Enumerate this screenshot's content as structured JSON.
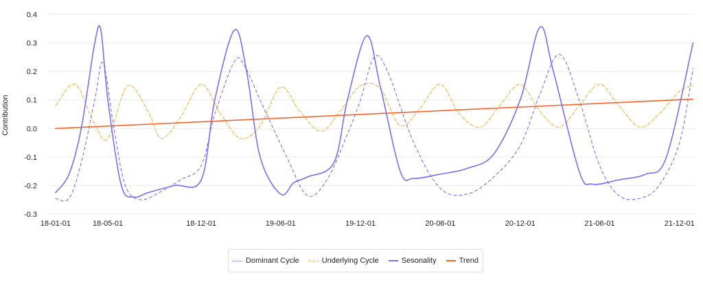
{
  "chart_data": {
    "type": "line",
    "title": "",
    "xlabel": "",
    "ylabel": "Contribution",
    "ylim": [
      -0.3,
      0.4
    ],
    "y_ticks": [
      "-0.3",
      "-0.2",
      "-0.1",
      "0.0",
      "0.1",
      "0.2",
      "0.3",
      "0.4"
    ],
    "x_range": [
      "2017-12-15",
      "2022-01-05"
    ],
    "x_ticks": [
      {
        "date": "2018-01-01",
        "label": "18-01-01"
      },
      {
        "date": "2018-05-01",
        "label": "18-05-01"
      },
      {
        "date": "2018-12-01",
        "label": "18-12-01"
      },
      {
        "date": "2019-06-01",
        "label": "19-06-01"
      },
      {
        "date": "2019-12-01",
        "label": "19-12-01"
      },
      {
        "date": "2020-06-01",
        "label": "20-06-01"
      },
      {
        "date": "2020-12-01",
        "label": "20-12-01"
      },
      {
        "date": "2021-06-01",
        "label": "21-06-01"
      },
      {
        "date": "2021-12-01",
        "label": "21-12-01"
      }
    ],
    "grid": true,
    "legend_position": "bottom",
    "series": [
      {
        "name": "Dominant Cycle",
        "style": "dotted",
        "color": "#7b6cf6",
        "points": [
          [
            "2018-01-01",
            -0.245
          ],
          [
            "2018-02-01",
            -0.245
          ],
          [
            "2018-03-01",
            -0.12
          ],
          [
            "2018-04-01",
            0.1
          ],
          [
            "2018-04-20",
            0.23
          ],
          [
            "2018-05-15",
            0.0
          ],
          [
            "2018-06-10",
            -0.2
          ],
          [
            "2018-07-15",
            -0.25
          ],
          [
            "2018-09-01",
            -0.22
          ],
          [
            "2018-10-15",
            -0.18
          ],
          [
            "2018-12-01",
            -0.13
          ],
          [
            "2019-01-01",
            0.05
          ],
          [
            "2019-02-15",
            0.235
          ],
          [
            "2019-03-10",
            0.22
          ],
          [
            "2019-04-15",
            0.1
          ],
          [
            "2019-06-15",
            -0.1
          ],
          [
            "2019-08-01",
            -0.235
          ],
          [
            "2019-09-15",
            -0.18
          ],
          [
            "2019-11-01",
            -0.02
          ],
          [
            "2019-12-01",
            0.1
          ],
          [
            "2020-01-01",
            0.25
          ],
          [
            "2020-02-01",
            0.2
          ],
          [
            "2020-04-01",
            -0.05
          ],
          [
            "2020-06-01",
            -0.21
          ],
          [
            "2020-08-01",
            -0.23
          ],
          [
            "2020-10-01",
            -0.17
          ],
          [
            "2020-12-01",
            -0.06
          ],
          [
            "2021-01-15",
            0.12
          ],
          [
            "2021-03-01",
            0.26
          ],
          [
            "2021-04-15",
            0.1
          ],
          [
            "2021-06-01",
            -0.13
          ],
          [
            "2021-07-15",
            -0.235
          ],
          [
            "2021-09-01",
            -0.245
          ],
          [
            "2021-10-15",
            -0.2
          ],
          [
            "2021-12-01",
            -0.05
          ],
          [
            "2022-01-01",
            0.21
          ]
        ]
      },
      {
        "name": "Underlying Cycle",
        "style": "dashed",
        "color": "#f5b342",
        "points": [
          [
            "2018-01-01",
            0.08
          ],
          [
            "2018-02-15",
            0.155
          ],
          [
            "2018-03-30",
            0.02
          ],
          [
            "2018-05-01",
            -0.035
          ],
          [
            "2018-06-15",
            0.15
          ],
          [
            "2018-08-01",
            0.06
          ],
          [
            "2018-09-01",
            -0.035
          ],
          [
            "2018-10-15",
            0.04
          ],
          [
            "2018-12-01",
            0.155
          ],
          [
            "2019-01-15",
            0.05
          ],
          [
            "2019-03-01",
            -0.035
          ],
          [
            "2019-04-15",
            0.01
          ],
          [
            "2019-06-01",
            0.145
          ],
          [
            "2019-07-15",
            0.06
          ],
          [
            "2019-09-01",
            -0.01
          ],
          [
            "2019-10-15",
            0.06
          ],
          [
            "2019-12-01",
            0.15
          ],
          [
            "2020-01-15",
            0.14
          ],
          [
            "2020-03-01",
            0.01
          ],
          [
            "2020-04-15",
            0.07
          ],
          [
            "2020-06-01",
            0.155
          ],
          [
            "2020-07-15",
            0.05
          ],
          [
            "2020-09-01",
            0.005
          ],
          [
            "2020-10-15",
            0.08
          ],
          [
            "2020-12-01",
            0.155
          ],
          [
            "2021-01-15",
            0.06
          ],
          [
            "2021-03-01",
            0.005
          ],
          [
            "2021-04-15",
            0.08
          ],
          [
            "2021-06-01",
            0.155
          ],
          [
            "2021-07-15",
            0.08
          ],
          [
            "2021-09-01",
            0.005
          ],
          [
            "2021-10-15",
            0.05
          ],
          [
            "2021-12-01",
            0.13
          ],
          [
            "2022-01-01",
            0.15
          ]
        ]
      },
      {
        "name": "Sesonality",
        "style": "solid",
        "color": "#7b6cf6",
        "points": [
          [
            "2018-01-01",
            -0.225
          ],
          [
            "2018-02-01",
            -0.16
          ],
          [
            "2018-03-01",
            0.0
          ],
          [
            "2018-04-01",
            0.3
          ],
          [
            "2018-04-15",
            0.345
          ],
          [
            "2018-05-01",
            0.1
          ],
          [
            "2018-06-01",
            -0.2
          ],
          [
            "2018-07-01",
            -0.24
          ],
          [
            "2018-08-01",
            -0.225
          ],
          [
            "2018-10-01",
            -0.2
          ],
          [
            "2018-12-01",
            -0.18
          ],
          [
            "2019-01-01",
            0.1
          ],
          [
            "2019-02-15",
            0.345
          ],
          [
            "2019-03-15",
            0.2
          ],
          [
            "2019-04-15",
            -0.1
          ],
          [
            "2019-06-01",
            -0.23
          ],
          [
            "2019-07-01",
            -0.19
          ],
          [
            "2019-08-01",
            -0.17
          ],
          [
            "2019-10-01",
            -0.12
          ],
          [
            "2019-11-01",
            0.1
          ],
          [
            "2019-12-15",
            0.325
          ],
          [
            "2020-01-15",
            0.15
          ],
          [
            "2020-03-01",
            -0.15
          ],
          [
            "2020-04-01",
            -0.175
          ],
          [
            "2020-06-01",
            -0.16
          ],
          [
            "2020-08-01",
            -0.14
          ],
          [
            "2020-10-01",
            -0.09
          ],
          [
            "2020-12-01",
            0.1
          ],
          [
            "2021-01-15",
            0.355
          ],
          [
            "2021-02-15",
            0.2
          ],
          [
            "2021-04-15",
            -0.15
          ],
          [
            "2021-05-15",
            -0.195
          ],
          [
            "2021-07-15",
            -0.18
          ],
          [
            "2021-09-15",
            -0.16
          ],
          [
            "2021-11-01",
            -0.1
          ],
          [
            "2022-01-01",
            0.3
          ]
        ]
      },
      {
        "name": "Trend",
        "style": "solid",
        "color": "#f2642e",
        "points": [
          [
            "2018-01-01",
            0.0
          ],
          [
            "2022-01-01",
            0.103
          ]
        ]
      }
    ]
  }
}
